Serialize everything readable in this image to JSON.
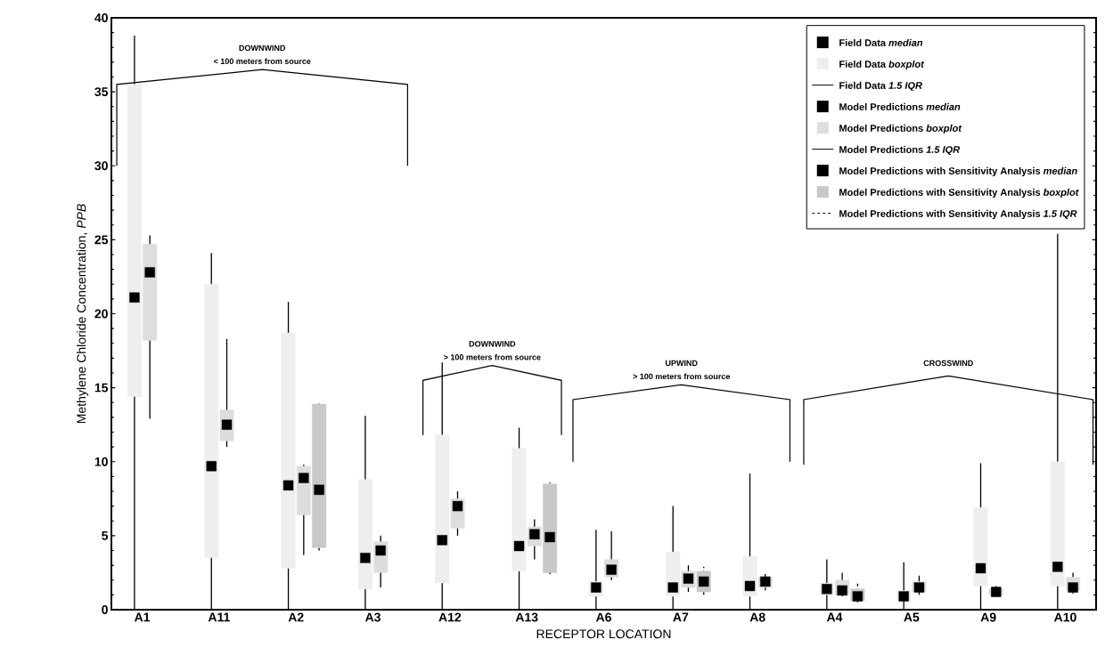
{
  "chart_data": {
    "type": "box",
    "xlabel": "RECEPTOR LOCATION",
    "ylabel": "Methylene Chloride Concentration, *PPB*",
    "categories": [
      "A1",
      "A11",
      "A2",
      "A3",
      "A12",
      "A13",
      "A6",
      "A7",
      "A8",
      "A4",
      "A5",
      "A9",
      "A10"
    ],
    "ylim": [
      0,
      40
    ],
    "yticks": [
      0,
      5,
      10,
      15,
      20,
      25,
      30,
      35,
      40
    ],
    "legend": "top right",
    "marker": "square",
    "annotations": [
      "DOWNWIND",
      "< 100 meters from source",
      "DOWNWIND",
      "> 100 meters from source",
      "UPWIND",
      "> 100 meters from source",
      "CROSSWIND",
      "*median*",
      "*boxplot*",
      "*1.5 IQR*"
    ],
    "series": [
      {
        "name": "Field Data",
        "color": "#eeeeee",
        "line_style": "solid",
        "boxes": [
          {
            "low": 0,
            "q1": 14.4,
            "median": 21.1,
            "q3": 35.5,
            "high": 38.8
          },
          {
            "low": 0,
            "q1": 3.5,
            "median": 9.7,
            "q3": 22.0,
            "high": 24.1
          },
          {
            "low": 0,
            "q1": 2.8,
            "median": 8.4,
            "q3": 18.7,
            "high": 20.8
          },
          {
            "low": 0,
            "q1": 1.4,
            "median": 3.5,
            "q3": 8.8,
            "high": 13.1
          },
          {
            "low": 0,
            "q1": 1.8,
            "median": 4.7,
            "q3": 11.8,
            "high": 16.7
          },
          {
            "low": 0,
            "q1": 2.6,
            "median": 4.3,
            "q3": 10.9,
            "high": 12.3
          },
          {
            "low": 0,
            "q1": 0.9,
            "median": 1.5,
            "q3": 1.9,
            "high": 5.4
          },
          {
            "low": 0,
            "q1": 0.9,
            "median": 1.5,
            "q3": 3.9,
            "high": 7.0
          },
          {
            "low": 0,
            "q1": 0.9,
            "median": 1.6,
            "q3": 3.6,
            "high": 9.2
          },
          {
            "low": 0,
            "q1": 1.0,
            "median": 1.4,
            "q3": 1.8,
            "high": 3.4
          },
          {
            "low": 0,
            "q1": 0.6,
            "median": 0.9,
            "q3": 1.3,
            "high": 3.2
          },
          {
            "low": 0,
            "q1": 1.6,
            "median": 2.8,
            "q3": 6.9,
            "high": 9.9
          },
          {
            "low": 0,
            "q1": 1.6,
            "median": 2.9,
            "q3": 10.0,
            "high": 25.4
          }
        ]
      },
      {
        "name": "Model Predictions",
        "color": "#dddddd",
        "line_style": "solid",
        "boxes": [
          {
            "low": 12.9,
            "q1": 18.2,
            "median": 22.8,
            "q3": 24.7,
            "high": 25.3
          },
          {
            "low": 11.0,
            "q1": 11.4,
            "median": 12.5,
            "q3": 13.5,
            "high": 18.3
          },
          {
            "low": 3.7,
            "q1": 6.4,
            "median": 8.9,
            "q3": 9.7,
            "high": 9.8
          },
          {
            "low": 1.5,
            "q1": 2.5,
            "median": 4.0,
            "q3": 4.6,
            "high": 5.0
          },
          {
            "low": 5.0,
            "q1": 5.5,
            "median": 7.0,
            "q3": 7.5,
            "high": 8.0
          },
          {
            "low": 3.4,
            "q1": 4.3,
            "median": 5.1,
            "q3": 5.6,
            "high": 6.1
          },
          {
            "low": 2.0,
            "q1": 2.2,
            "median": 2.7,
            "q3": 3.4,
            "high": 5.3
          },
          {
            "low": 1.2,
            "q1": 1.5,
            "median": 2.1,
            "q3": 2.6,
            "high": 3.0
          },
          {
            "low": 1.3,
            "q1": 1.5,
            "median": 1.9,
            "q3": 2.2,
            "high": 2.4
          },
          {
            "low": 0.9,
            "q1": 1.0,
            "median": 1.3,
            "q3": 2.0,
            "high": 2.5
          },
          {
            "low": 1.0,
            "q1": 1.2,
            "median": 1.5,
            "q3": 1.9,
            "high": 2.3
          },
          {
            "low": 0.9,
            "q1": 1.0,
            "median": 1.2,
            "q3": 1.4,
            "high": 1.6
          },
          {
            "low": 1.1,
            "q1": 1.3,
            "median": 1.5,
            "q3": 2.2,
            "high": 2.5
          }
        ]
      },
      {
        "name": "Model Predictions with Sensitivity Analysis",
        "color": "#c8c8c8",
        "line_style": "dashed",
        "boxes": [
          null,
          null,
          {
            "low": 4.0,
            "q1": 4.2,
            "median": 8.1,
            "q3": 13.9,
            "high": 14.0
          },
          null,
          null,
          {
            "low": 2.4,
            "q1": 2.5,
            "median": 4.9,
            "q3": 8.5,
            "high": 8.6
          },
          null,
          {
            "low": 1.0,
            "q1": 1.2,
            "median": 1.9,
            "q3": 2.6,
            "high": 2.9
          },
          null,
          {
            "low": 0.5,
            "q1": 0.6,
            "median": 0.9,
            "q3": 1.4,
            "high": 1.8
          },
          null,
          null,
          null
        ]
      }
    ]
  }
}
